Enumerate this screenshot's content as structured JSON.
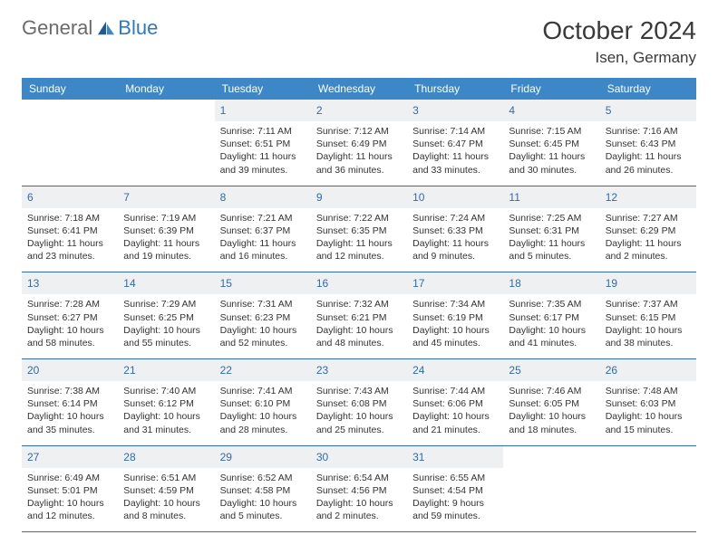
{
  "brand": {
    "part1": "General",
    "part2": "Blue"
  },
  "title": "October 2024",
  "location": "Isen, Germany",
  "colors": {
    "header_bg": "#3d87c7",
    "header_text": "#ffffff",
    "daynum_bg": "#eef0f2",
    "daynum_color": "#2f6ca8",
    "border_color": "#2f6ca8",
    "body_text": "#333333",
    "brand_gray": "#6b6b6b",
    "brand_blue": "#2f7abf"
  },
  "day_headers": [
    "Sunday",
    "Monday",
    "Tuesday",
    "Wednesday",
    "Thursday",
    "Friday",
    "Saturday"
  ],
  "weeks": [
    [
      null,
      null,
      {
        "n": "1",
        "sr": "7:11 AM",
        "ss": "6:51 PM",
        "dl": "11 hours and 39 minutes."
      },
      {
        "n": "2",
        "sr": "7:12 AM",
        "ss": "6:49 PM",
        "dl": "11 hours and 36 minutes."
      },
      {
        "n": "3",
        "sr": "7:14 AM",
        "ss": "6:47 PM",
        "dl": "11 hours and 33 minutes."
      },
      {
        "n": "4",
        "sr": "7:15 AM",
        "ss": "6:45 PM",
        "dl": "11 hours and 30 minutes."
      },
      {
        "n": "5",
        "sr": "7:16 AM",
        "ss": "6:43 PM",
        "dl": "11 hours and 26 minutes."
      }
    ],
    [
      {
        "n": "6",
        "sr": "7:18 AM",
        "ss": "6:41 PM",
        "dl": "11 hours and 23 minutes."
      },
      {
        "n": "7",
        "sr": "7:19 AM",
        "ss": "6:39 PM",
        "dl": "11 hours and 19 minutes."
      },
      {
        "n": "8",
        "sr": "7:21 AM",
        "ss": "6:37 PM",
        "dl": "11 hours and 16 minutes."
      },
      {
        "n": "9",
        "sr": "7:22 AM",
        "ss": "6:35 PM",
        "dl": "11 hours and 12 minutes."
      },
      {
        "n": "10",
        "sr": "7:24 AM",
        "ss": "6:33 PM",
        "dl": "11 hours and 9 minutes."
      },
      {
        "n": "11",
        "sr": "7:25 AM",
        "ss": "6:31 PM",
        "dl": "11 hours and 5 minutes."
      },
      {
        "n": "12",
        "sr": "7:27 AM",
        "ss": "6:29 PM",
        "dl": "11 hours and 2 minutes."
      }
    ],
    [
      {
        "n": "13",
        "sr": "7:28 AM",
        "ss": "6:27 PM",
        "dl": "10 hours and 58 minutes."
      },
      {
        "n": "14",
        "sr": "7:29 AM",
        "ss": "6:25 PM",
        "dl": "10 hours and 55 minutes."
      },
      {
        "n": "15",
        "sr": "7:31 AM",
        "ss": "6:23 PM",
        "dl": "10 hours and 52 minutes."
      },
      {
        "n": "16",
        "sr": "7:32 AM",
        "ss": "6:21 PM",
        "dl": "10 hours and 48 minutes."
      },
      {
        "n": "17",
        "sr": "7:34 AM",
        "ss": "6:19 PM",
        "dl": "10 hours and 45 minutes."
      },
      {
        "n": "18",
        "sr": "7:35 AM",
        "ss": "6:17 PM",
        "dl": "10 hours and 41 minutes."
      },
      {
        "n": "19",
        "sr": "7:37 AM",
        "ss": "6:15 PM",
        "dl": "10 hours and 38 minutes."
      }
    ],
    [
      {
        "n": "20",
        "sr": "7:38 AM",
        "ss": "6:14 PM",
        "dl": "10 hours and 35 minutes."
      },
      {
        "n": "21",
        "sr": "7:40 AM",
        "ss": "6:12 PM",
        "dl": "10 hours and 31 minutes."
      },
      {
        "n": "22",
        "sr": "7:41 AM",
        "ss": "6:10 PM",
        "dl": "10 hours and 28 minutes."
      },
      {
        "n": "23",
        "sr": "7:43 AM",
        "ss": "6:08 PM",
        "dl": "10 hours and 25 minutes."
      },
      {
        "n": "24",
        "sr": "7:44 AM",
        "ss": "6:06 PM",
        "dl": "10 hours and 21 minutes."
      },
      {
        "n": "25",
        "sr": "7:46 AM",
        "ss": "6:05 PM",
        "dl": "10 hours and 18 minutes."
      },
      {
        "n": "26",
        "sr": "7:48 AM",
        "ss": "6:03 PM",
        "dl": "10 hours and 15 minutes."
      }
    ],
    [
      {
        "n": "27",
        "sr": "6:49 AM",
        "ss": "5:01 PM",
        "dl": "10 hours and 12 minutes."
      },
      {
        "n": "28",
        "sr": "6:51 AM",
        "ss": "4:59 PM",
        "dl": "10 hours and 8 minutes."
      },
      {
        "n": "29",
        "sr": "6:52 AM",
        "ss": "4:58 PM",
        "dl": "10 hours and 5 minutes."
      },
      {
        "n": "30",
        "sr": "6:54 AM",
        "ss": "4:56 PM",
        "dl": "10 hours and 2 minutes."
      },
      {
        "n": "31",
        "sr": "6:55 AM",
        "ss": "4:54 PM",
        "dl": "9 hours and 59 minutes."
      },
      null,
      null
    ]
  ],
  "labels": {
    "sunrise": "Sunrise:",
    "sunset": "Sunset:",
    "daylight": "Daylight:"
  }
}
